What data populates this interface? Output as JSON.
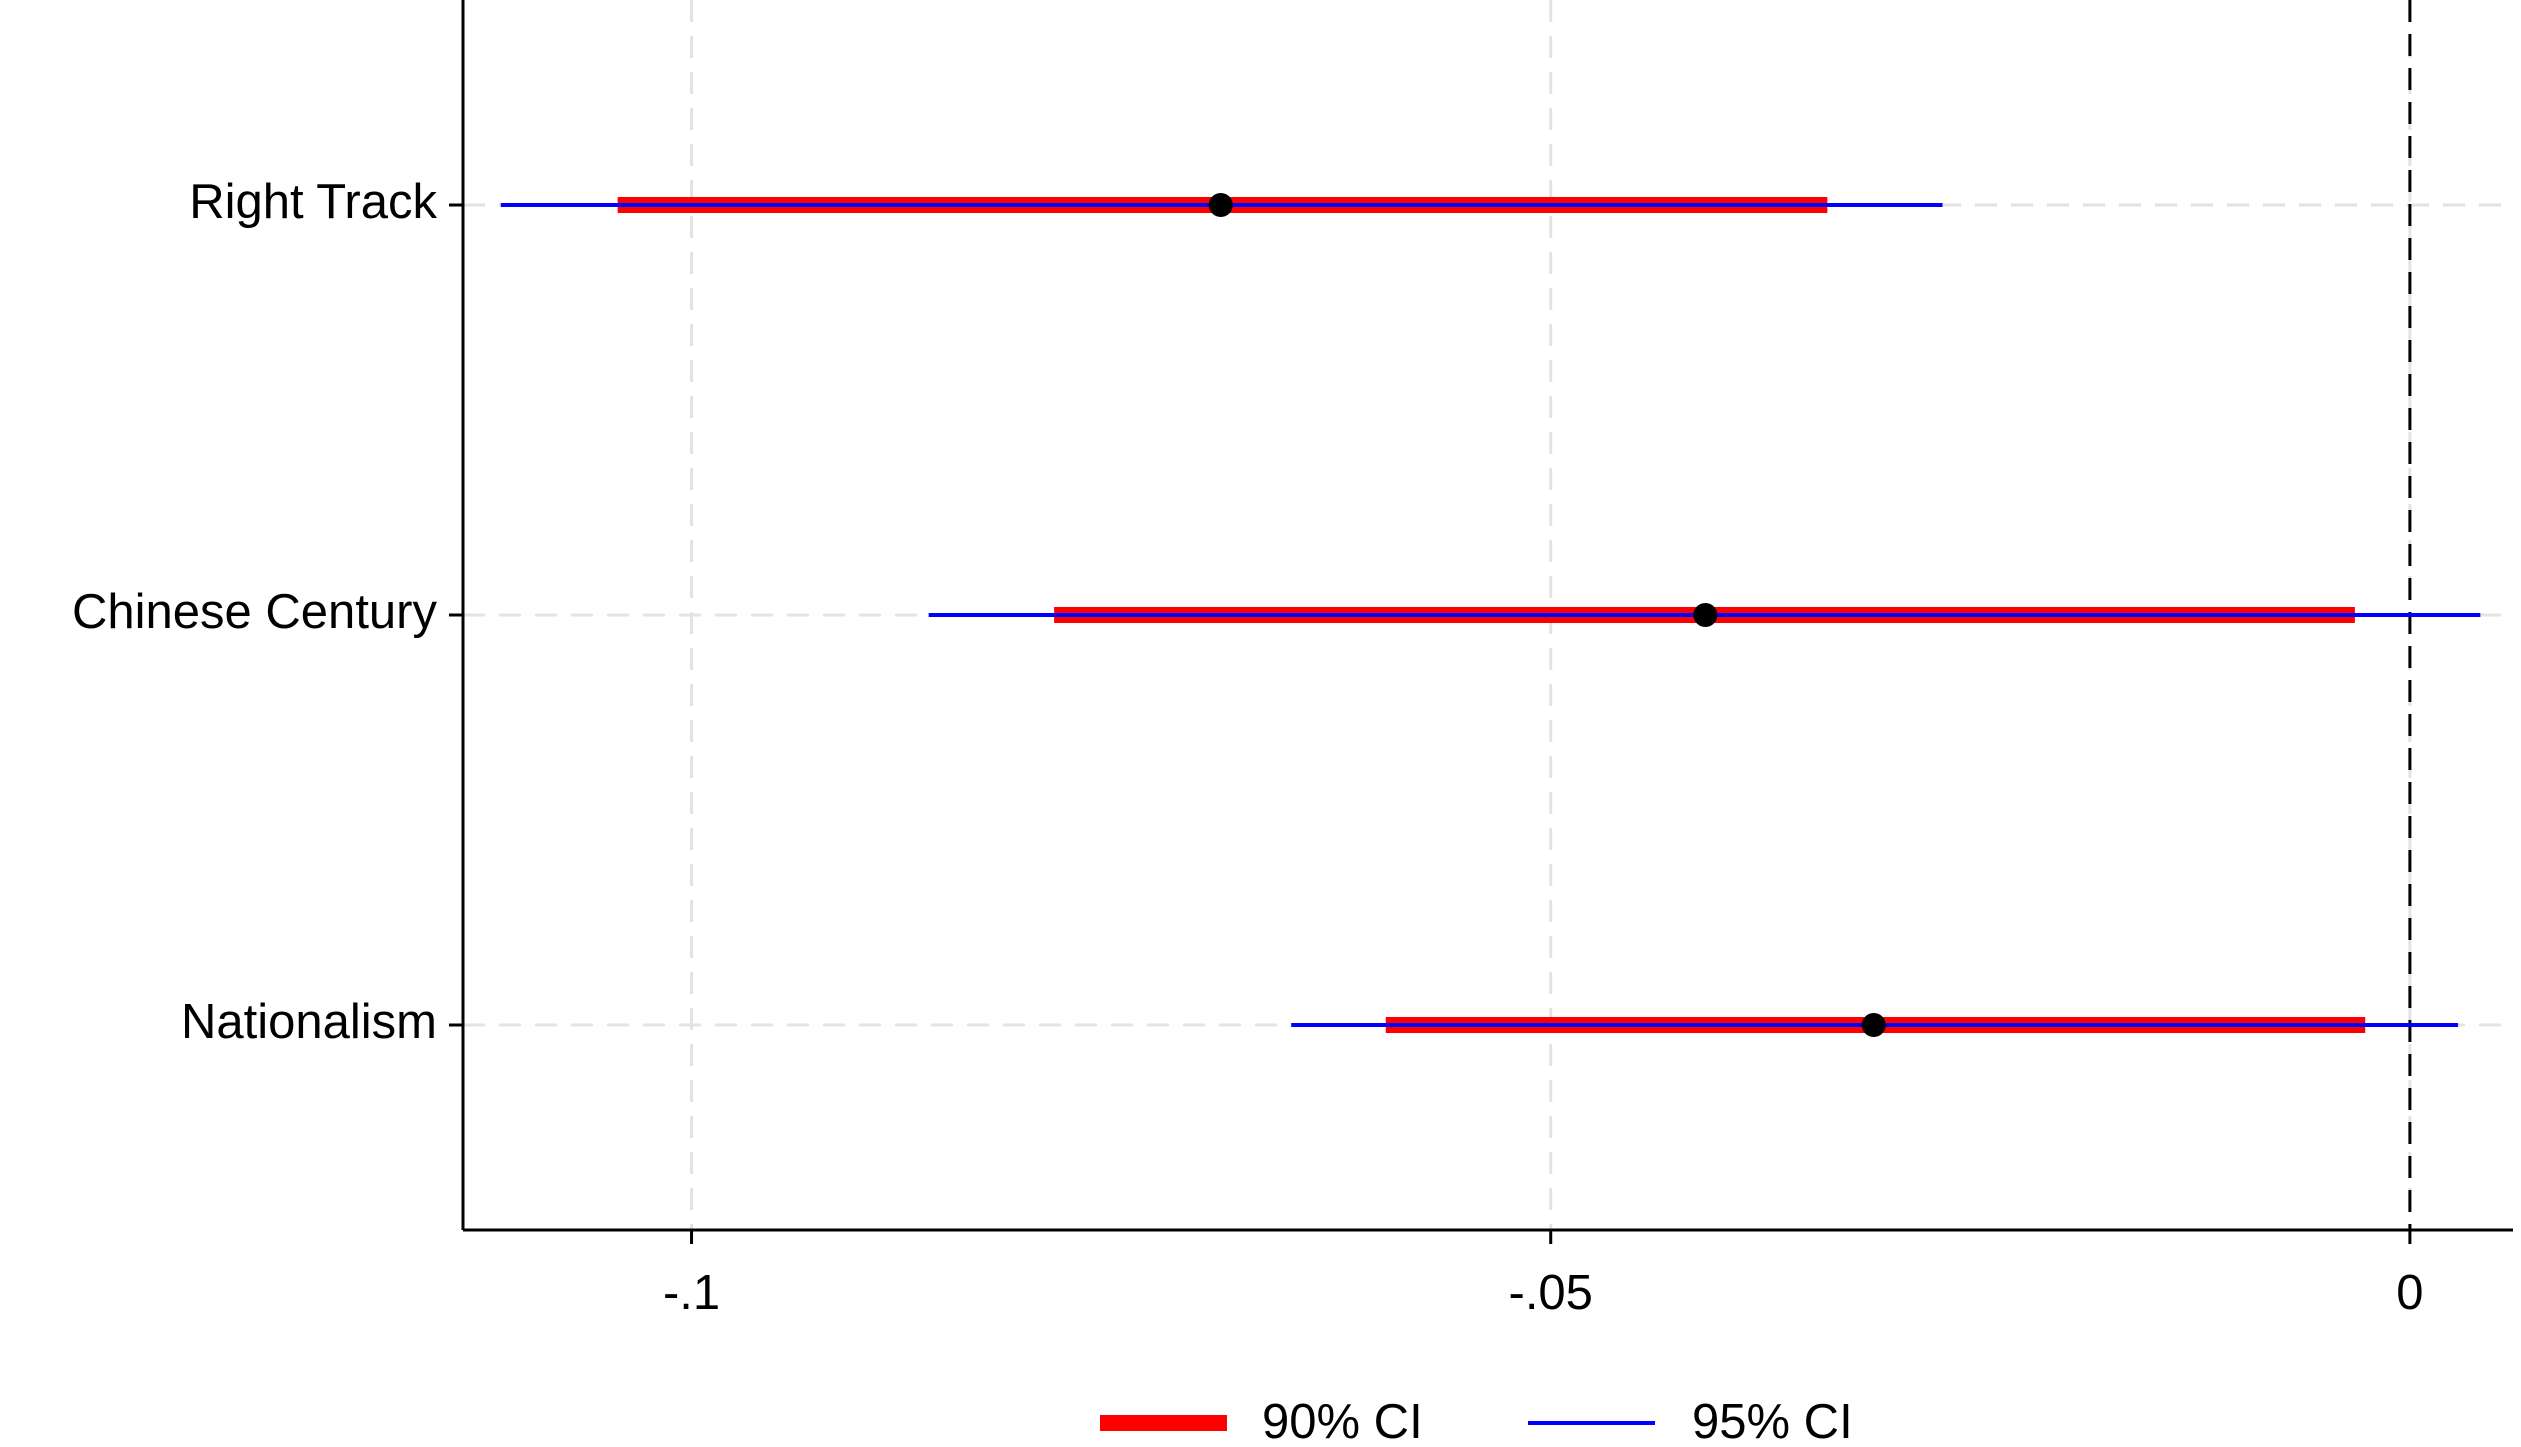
{
  "chart_data": {
    "type": "coefplot",
    "categories": [
      "Right Track",
      "Chinese Century",
      "Nationalism"
    ],
    "values": [
      -0.0692,
      -0.041,
      -0.0312
    ],
    "point_color": "#000000",
    "series": [
      {
        "name": "90% CI",
        "color": "#ff0000",
        "low": [
          -0.1043,
          -0.0789,
          -0.0596
        ],
        "high": [
          -0.0339,
          -0.0032,
          -0.0026
        ]
      },
      {
        "name": "95% CI",
        "color": "#0000ff",
        "low": [
          -0.1111,
          -0.0862,
          -0.0651
        ],
        "high": [
          -0.0272,
          0.0041,
          0.0028
        ]
      }
    ],
    "xlim": [
      -0.1133,
      0.006
    ],
    "xticks": [
      {
        "value": -0.1,
        "label": "-.1"
      },
      {
        "value": -0.05,
        "label": "-.05"
      },
      0
    ],
    "grid": true,
    "reference_line": 0,
    "legend": "bottom"
  }
}
